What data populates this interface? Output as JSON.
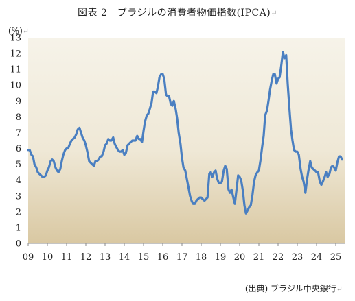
{
  "page": {
    "title": "図表 2　ブラジルの消費者物価指数(IPCA)",
    "unit": "(%)",
    "source": "(出典) ブラジル中央銀行",
    "para_mark": "↵"
  },
  "colors": {
    "line": "#4a7fc1",
    "bg_top": "#f6f3e9",
    "bg_bottom": "#d9c8a2",
    "axis": "#8a8a8a"
  },
  "chart_data": {
    "type": "line",
    "title": "図表 2　ブラジルの消費者物価指数(IPCA)",
    "ylabel": "(%)",
    "xlabel": "",
    "ylim": [
      0,
      13
    ],
    "xlim": [
      2009.0,
      2025.5
    ],
    "grid": false,
    "y_ticks": [
      "0",
      "1",
      "2",
      "3",
      "4",
      "5",
      "6",
      "7",
      "8",
      "9",
      "10",
      "11",
      "12",
      "13"
    ],
    "x_ticks": [
      "09",
      "10",
      "11",
      "12",
      "13",
      "14",
      "15",
      "16",
      "17",
      "18",
      "19",
      "20",
      "21",
      "22",
      "23",
      "24",
      "25"
    ],
    "series": [
      {
        "values": [
          [
            2009.0,
            5.9
          ],
          [
            2009.08,
            5.9
          ],
          [
            2009.17,
            5.6
          ],
          [
            2009.25,
            5.5
          ],
          [
            2009.33,
            5.0
          ],
          [
            2009.42,
            4.8
          ],
          [
            2009.5,
            4.5
          ],
          [
            2009.58,
            4.4
          ],
          [
            2009.67,
            4.3
          ],
          [
            2009.75,
            4.2
          ],
          [
            2009.83,
            4.2
          ],
          [
            2009.92,
            4.3
          ],
          [
            2010.0,
            4.6
          ],
          [
            2010.08,
            4.8
          ],
          [
            2010.17,
            5.2
          ],
          [
            2010.25,
            5.3
          ],
          [
            2010.33,
            5.2
          ],
          [
            2010.42,
            4.8
          ],
          [
            2010.5,
            4.6
          ],
          [
            2010.58,
            4.5
          ],
          [
            2010.67,
            4.7
          ],
          [
            2010.75,
            5.2
          ],
          [
            2010.83,
            5.6
          ],
          [
            2010.92,
            5.9
          ],
          [
            2011.0,
            6.0
          ],
          [
            2011.08,
            6.0
          ],
          [
            2011.17,
            6.3
          ],
          [
            2011.25,
            6.5
          ],
          [
            2011.33,
            6.6
          ],
          [
            2011.42,
            6.7
          ],
          [
            2011.5,
            6.9
          ],
          [
            2011.58,
            7.2
          ],
          [
            2011.67,
            7.3
          ],
          [
            2011.75,
            7.0
          ],
          [
            2011.83,
            6.7
          ],
          [
            2011.92,
            6.5
          ],
          [
            2012.0,
            6.2
          ],
          [
            2012.08,
            5.8
          ],
          [
            2012.17,
            5.2
          ],
          [
            2012.25,
            5.1
          ],
          [
            2012.33,
            5.0
          ],
          [
            2012.42,
            4.9
          ],
          [
            2012.5,
            5.2
          ],
          [
            2012.58,
            5.2
          ],
          [
            2012.67,
            5.3
          ],
          [
            2012.75,
            5.5
          ],
          [
            2012.83,
            5.5
          ],
          [
            2012.92,
            5.8
          ],
          [
            2013.0,
            6.2
          ],
          [
            2013.08,
            6.3
          ],
          [
            2013.17,
            6.6
          ],
          [
            2013.25,
            6.5
          ],
          [
            2013.33,
            6.5
          ],
          [
            2013.42,
            6.7
          ],
          [
            2013.5,
            6.3
          ],
          [
            2013.58,
            6.1
          ],
          [
            2013.67,
            5.9
          ],
          [
            2013.75,
            5.8
          ],
          [
            2013.83,
            5.8
          ],
          [
            2013.92,
            5.9
          ],
          [
            2014.0,
            5.6
          ],
          [
            2014.08,
            5.7
          ],
          [
            2014.17,
            6.2
          ],
          [
            2014.25,
            6.3
          ],
          [
            2014.33,
            6.4
          ],
          [
            2014.42,
            6.5
          ],
          [
            2014.5,
            6.5
          ],
          [
            2014.58,
            6.5
          ],
          [
            2014.67,
            6.8
          ],
          [
            2014.75,
            6.6
          ],
          [
            2014.83,
            6.6
          ],
          [
            2014.92,
            6.4
          ],
          [
            2015.0,
            7.1
          ],
          [
            2015.08,
            7.7
          ],
          [
            2015.17,
            8.1
          ],
          [
            2015.25,
            8.2
          ],
          [
            2015.33,
            8.5
          ],
          [
            2015.42,
            8.9
          ],
          [
            2015.5,
            9.6
          ],
          [
            2015.58,
            9.6
          ],
          [
            2015.67,
            9.5
          ],
          [
            2015.75,
            9.9
          ],
          [
            2015.83,
            10.5
          ],
          [
            2015.92,
            10.7
          ],
          [
            2016.0,
            10.7
          ],
          [
            2016.08,
            10.4
          ],
          [
            2016.17,
            9.4
          ],
          [
            2016.25,
            9.3
          ],
          [
            2016.33,
            9.3
          ],
          [
            2016.42,
            8.8
          ],
          [
            2016.5,
            8.7
          ],
          [
            2016.58,
            9.0
          ],
          [
            2016.67,
            8.5
          ],
          [
            2016.75,
            7.9
          ],
          [
            2016.83,
            7.0
          ],
          [
            2016.92,
            6.3
          ],
          [
            2017.0,
            5.4
          ],
          [
            2017.08,
            4.8
          ],
          [
            2017.17,
            4.6
          ],
          [
            2017.25,
            4.1
          ],
          [
            2017.33,
            3.6
          ],
          [
            2017.42,
            3.0
          ],
          [
            2017.5,
            2.7
          ],
          [
            2017.58,
            2.5
          ],
          [
            2017.67,
            2.5
          ],
          [
            2017.75,
            2.7
          ],
          [
            2017.83,
            2.8
          ],
          [
            2017.92,
            2.9
          ],
          [
            2018.0,
            2.9
          ],
          [
            2018.08,
            2.8
          ],
          [
            2018.17,
            2.7
          ],
          [
            2018.25,
            2.8
          ],
          [
            2018.33,
            2.9
          ],
          [
            2018.42,
            4.4
          ],
          [
            2018.5,
            4.5
          ],
          [
            2018.58,
            4.2
          ],
          [
            2018.67,
            4.5
          ],
          [
            2018.75,
            4.6
          ],
          [
            2018.83,
            4.1
          ],
          [
            2018.92,
            3.8
          ],
          [
            2019.0,
            3.8
          ],
          [
            2019.08,
            3.9
          ],
          [
            2019.17,
            4.6
          ],
          [
            2019.25,
            4.9
          ],
          [
            2019.33,
            4.7
          ],
          [
            2019.42,
            3.4
          ],
          [
            2019.5,
            3.2
          ],
          [
            2019.58,
            3.4
          ],
          [
            2019.67,
            2.9
          ],
          [
            2019.75,
            2.5
          ],
          [
            2019.83,
            3.3
          ],
          [
            2019.92,
            4.3
          ],
          [
            2020.0,
            4.2
          ],
          [
            2020.08,
            4.0
          ],
          [
            2020.17,
            3.3
          ],
          [
            2020.25,
            2.4
          ],
          [
            2020.33,
            1.9
          ],
          [
            2020.42,
            2.1
          ],
          [
            2020.5,
            2.3
          ],
          [
            2020.58,
            2.4
          ],
          [
            2020.67,
            3.1
          ],
          [
            2020.75,
            3.9
          ],
          [
            2020.83,
            4.3
          ],
          [
            2020.92,
            4.5
          ],
          [
            2021.0,
            4.6
          ],
          [
            2021.08,
            5.2
          ],
          [
            2021.17,
            6.1
          ],
          [
            2021.25,
            6.8
          ],
          [
            2021.33,
            8.1
          ],
          [
            2021.42,
            8.4
          ],
          [
            2021.5,
            9.0
          ],
          [
            2021.58,
            9.7
          ],
          [
            2021.67,
            10.3
          ],
          [
            2021.75,
            10.7
          ],
          [
            2021.83,
            10.7
          ],
          [
            2021.92,
            10.1
          ],
          [
            2022.0,
            10.4
          ],
          [
            2022.08,
            10.5
          ],
          [
            2022.17,
            11.3
          ],
          [
            2022.25,
            12.1
          ],
          [
            2022.33,
            11.7
          ],
          [
            2022.42,
            11.9
          ],
          [
            2022.5,
            10.1
          ],
          [
            2022.58,
            8.7
          ],
          [
            2022.67,
            7.2
          ],
          [
            2022.75,
            6.5
          ],
          [
            2022.83,
            5.9
          ],
          [
            2022.92,
            5.8
          ],
          [
            2023.0,
            5.8
          ],
          [
            2023.08,
            5.6
          ],
          [
            2023.17,
            4.7
          ],
          [
            2023.25,
            4.2
          ],
          [
            2023.33,
            3.9
          ],
          [
            2023.42,
            3.2
          ],
          [
            2023.5,
            4.0
          ],
          [
            2023.58,
            4.6
          ],
          [
            2023.67,
            5.2
          ],
          [
            2023.75,
            4.8
          ],
          [
            2023.83,
            4.7
          ],
          [
            2023.92,
            4.6
          ],
          [
            2024.0,
            4.5
          ],
          [
            2024.08,
            4.5
          ],
          [
            2024.17,
            3.9
          ],
          [
            2024.25,
            3.7
          ],
          [
            2024.33,
            3.9
          ],
          [
            2024.42,
            4.2
          ],
          [
            2024.5,
            4.5
          ],
          [
            2024.58,
            4.2
          ],
          [
            2024.67,
            4.4
          ],
          [
            2024.75,
            4.8
          ],
          [
            2024.83,
            4.9
          ],
          [
            2024.92,
            4.8
          ],
          [
            2025.0,
            4.6
          ],
          [
            2025.08,
            5.1
          ],
          [
            2025.17,
            5.5
          ],
          [
            2025.25,
            5.5
          ],
          [
            2025.33,
            5.3
          ]
        ]
      }
    ]
  }
}
